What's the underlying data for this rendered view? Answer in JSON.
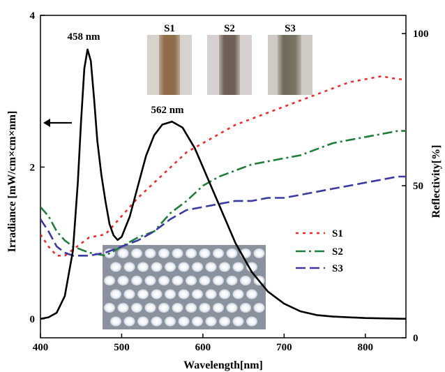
{
  "chart_data": {
    "type": "line",
    "xlabel": "Wavelength[nm]",
    "ylabel_left": "Irradiance [mW/cm×cm×nm]",
    "ylabel_right": "Reflectivity[%]",
    "xlim": [
      400,
      850
    ],
    "ylim_left": [
      -0.25,
      4
    ],
    "ylim_right": [
      0,
      106
    ],
    "x_ticks": [
      400,
      500,
      600,
      700,
      800
    ],
    "y_ticks_left": [
      0,
      2,
      4
    ],
    "y_ticks_right": [
      0,
      50,
      100
    ],
    "annotations": [
      {
        "text": "458 nm",
        "x": 458,
        "y": 3.55
      },
      {
        "text": "562 nm",
        "x": 562,
        "y": 2.6
      }
    ],
    "photo_labels": [
      "S1",
      "S2",
      "S3"
    ],
    "irradiance": {
      "axis": "left",
      "color": "#000000",
      "points": [
        [
          400,
          0.0
        ],
        [
          410,
          0.02
        ],
        [
          420,
          0.08
        ],
        [
          430,
          0.3
        ],
        [
          440,
          0.9
        ],
        [
          446,
          1.8
        ],
        [
          450,
          2.6
        ],
        [
          454,
          3.3
        ],
        [
          458,
          3.55
        ],
        [
          462,
          3.4
        ],
        [
          466,
          2.9
        ],
        [
          470,
          2.35
        ],
        [
          475,
          1.9
        ],
        [
          480,
          1.55
        ],
        [
          485,
          1.25
        ],
        [
          490,
          1.1
        ],
        [
          495,
          1.04
        ],
        [
          500,
          1.08
        ],
        [
          510,
          1.35
        ],
        [
          520,
          1.75
        ],
        [
          530,
          2.15
        ],
        [
          540,
          2.42
        ],
        [
          550,
          2.56
        ],
        [
          562,
          2.6
        ],
        [
          575,
          2.52
        ],
        [
          590,
          2.25
        ],
        [
          600,
          2.0
        ],
        [
          620,
          1.5
        ],
        [
          640,
          1.0
        ],
        [
          660,
          0.62
        ],
        [
          680,
          0.36
        ],
        [
          700,
          0.2
        ],
        [
          720,
          0.1
        ],
        [
          740,
          0.05
        ],
        [
          760,
          0.03
        ],
        [
          800,
          0.01
        ],
        [
          850,
          0.0
        ]
      ]
    },
    "series": [
      {
        "name": "S1",
        "axis": "right",
        "color": "#ee2a2a",
        "dash": "4 6",
        "points": [
          [
            400,
            34
          ],
          [
            410,
            30
          ],
          [
            420,
            27
          ],
          [
            430,
            27
          ],
          [
            440,
            29
          ],
          [
            450,
            31
          ],
          [
            460,
            33
          ],
          [
            480,
            34
          ],
          [
            500,
            40
          ],
          [
            520,
            46
          ],
          [
            540,
            51
          ],
          [
            560,
            56
          ],
          [
            580,
            61
          ],
          [
            600,
            64
          ],
          [
            620,
            67
          ],
          [
            640,
            70
          ],
          [
            660,
            72
          ],
          [
            680,
            74
          ],
          [
            700,
            76
          ],
          [
            720,
            78
          ],
          [
            740,
            80
          ],
          [
            760,
            82
          ],
          [
            780,
            84
          ],
          [
            800,
            85
          ],
          [
            820,
            86
          ],
          [
            840,
            85
          ],
          [
            850,
            85
          ]
        ]
      },
      {
        "name": "S2",
        "axis": "right",
        "color": "#1f7d3a",
        "dash": "14 5 3 5",
        "points": [
          [
            400,
            43
          ],
          [
            410,
            40
          ],
          [
            420,
            35
          ],
          [
            430,
            32
          ],
          [
            440,
            30
          ],
          [
            460,
            28
          ],
          [
            480,
            27
          ],
          [
            500,
            30
          ],
          [
            520,
            33
          ],
          [
            540,
            35
          ],
          [
            560,
            41
          ],
          [
            580,
            45
          ],
          [
            600,
            50
          ],
          [
            620,
            53
          ],
          [
            640,
            55
          ],
          [
            660,
            57
          ],
          [
            680,
            58
          ],
          [
            700,
            59
          ],
          [
            720,
            60
          ],
          [
            740,
            62
          ],
          [
            760,
            64
          ],
          [
            780,
            65
          ],
          [
            800,
            66
          ],
          [
            820,
            67
          ],
          [
            840,
            68
          ],
          [
            850,
            68
          ]
        ]
      },
      {
        "name": "S3",
        "axis": "right",
        "color": "#3a3aa0",
        "dash": "14 6",
        "points": [
          [
            400,
            39
          ],
          [
            410,
            35
          ],
          [
            420,
            30
          ],
          [
            430,
            28
          ],
          [
            440,
            27
          ],
          [
            460,
            27
          ],
          [
            480,
            28
          ],
          [
            500,
            30
          ],
          [
            520,
            32
          ],
          [
            540,
            35
          ],
          [
            560,
            39
          ],
          [
            580,
            42
          ],
          [
            600,
            43
          ],
          [
            620,
            44
          ],
          [
            640,
            45
          ],
          [
            660,
            45
          ],
          [
            680,
            46
          ],
          [
            700,
            46
          ],
          [
            720,
            47
          ],
          [
            740,
            48
          ],
          [
            760,
            49
          ],
          [
            780,
            50
          ],
          [
            800,
            51
          ],
          [
            820,
            52
          ],
          [
            840,
            53
          ],
          [
            850,
            53
          ]
        ]
      }
    ],
    "legend_position": "right-middle",
    "arrow": {
      "direction": "left",
      "points_to": "left-axis"
    }
  }
}
